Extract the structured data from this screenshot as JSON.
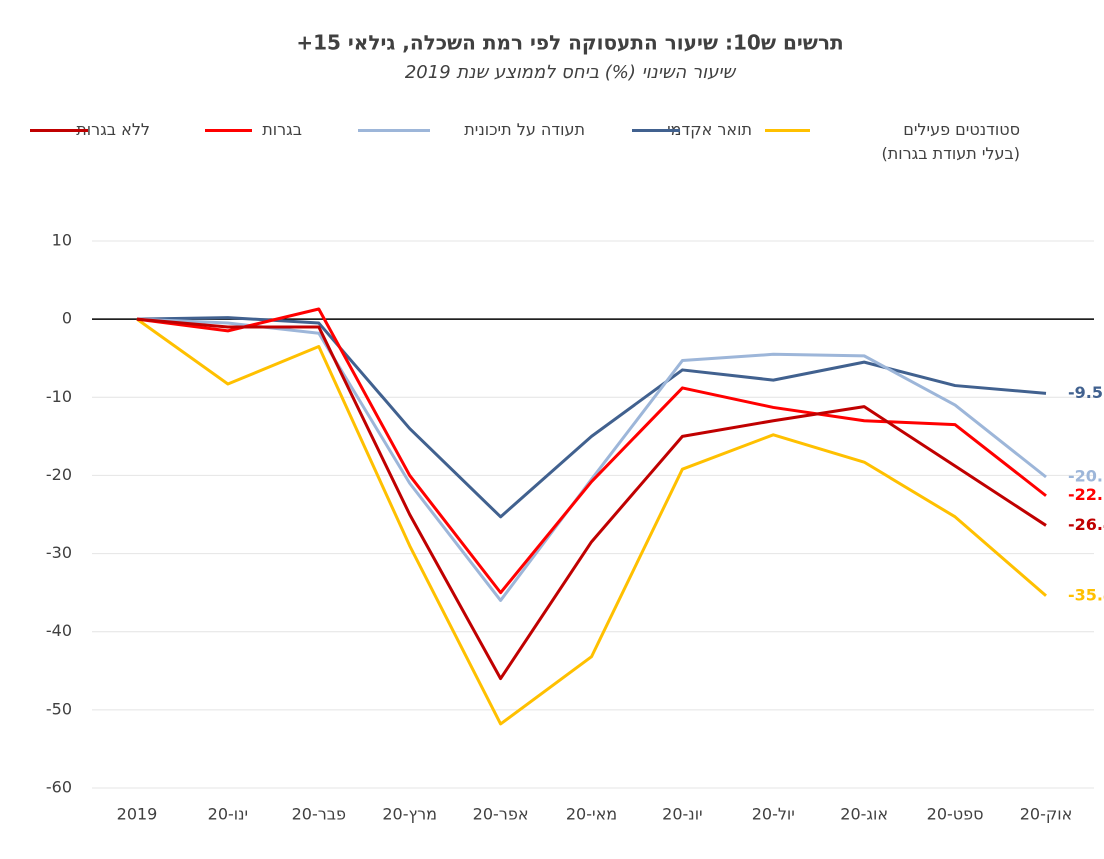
{
  "chart_data": {
    "type": "line",
    "title": "תרשים ש10: שיעור התעסוקה לפי רמת השכלה, גילאי 15+",
    "subtitle": "שיעור השינוי (%) ביחס לממוצע שנת 2019",
    "categories": [
      "2019",
      "ינו-20",
      "פבר-20",
      "מרץ-20",
      "אפר-20",
      "מאי-20",
      "יונ-20",
      "יול-20",
      "אוג-20",
      "ספט-20",
      "אוק-20"
    ],
    "series": [
      {
        "name": "סטודנטים פעילים\n(בעלי תעודת בגרות)",
        "color": "#ffc000",
        "values": [
          0,
          -8.3,
          -3.5,
          -29,
          -51.8,
          -43.2,
          -19.2,
          -14.8,
          -18.3,
          -25.3,
          -35.4
        ]
      },
      {
        "name": "תואר אקדמי",
        "color": "#41618f",
        "values": [
          0,
          0.2,
          -0.5,
          -14,
          -25.3,
          -15,
          -6.5,
          -7.8,
          -5.5,
          -8.5,
          -9.5
        ]
      },
      {
        "name": "תעודה על תיכונית",
        "color": "#9db6d9",
        "values": [
          0,
          -0.5,
          -1.8,
          -21,
          -36,
          -20.5,
          -5.3,
          -4.5,
          -4.7,
          -11,
          -20.2
        ]
      },
      {
        "name": "בגרות",
        "color": "#ff0000",
        "values": [
          0,
          -1.5,
          1.3,
          -20,
          -35,
          -20.8,
          -8.8,
          -11.3,
          -13,
          -13.5,
          -22.6
        ]
      },
      {
        "name": "ללא בגרות",
        "color": "#c00000",
        "values": [
          0,
          -1,
          -1,
          -25,
          -46,
          -28.5,
          -15,
          -13,
          -11.2,
          -18.8,
          -26.4
        ]
      }
    ],
    "ylim": [
      -60,
      10
    ],
    "yticks": [
      -60,
      -50,
      -40,
      -30,
      -20,
      -10,
      0,
      10
    ],
    "grid": true,
    "end_labels": true,
    "legend": "top"
  }
}
